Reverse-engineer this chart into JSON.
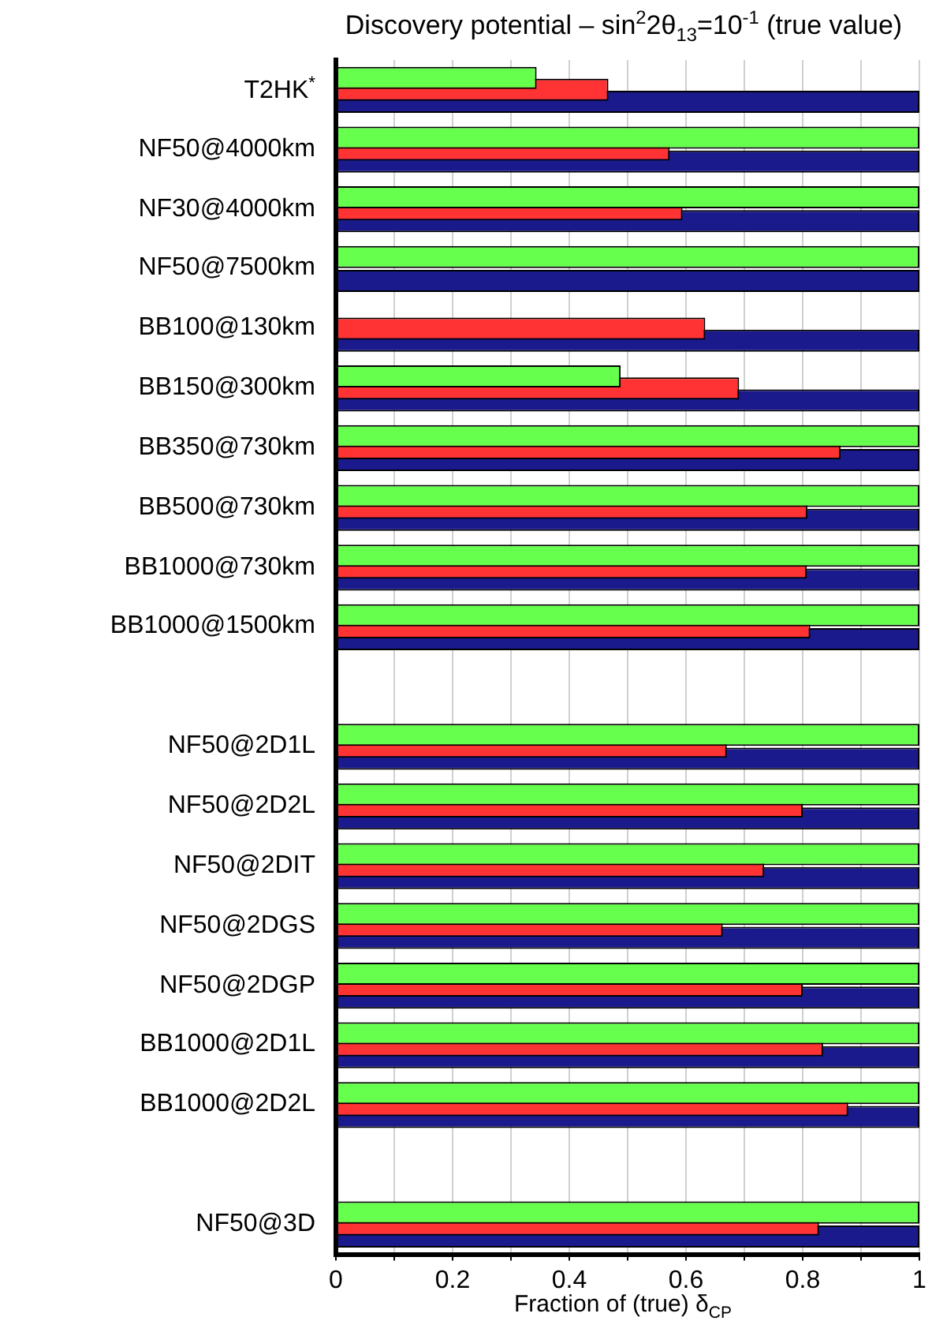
{
  "chart_data": {
    "type": "bar",
    "orientation": "horizontal",
    "title": "Discovery potential – sin$^{2}$2θ$_{13}$=10$^{-1}$ (true value)",
    "xlabel": "Fraction of (true) δ$_{CP}$",
    "categories": [
      "T2HK$^{*}$",
      "NF50@4000km",
      "NF30@4000km",
      "NF50@7500km",
      "BB100@130km",
      "BB150@300km",
      "BB350@730km",
      "BB500@730km",
      "BB1000@730km",
      "BB1000@1500km",
      null,
      "NF50@2D1L",
      "NF50@2D2L",
      "NF50@2DIT",
      "NF50@2DGS",
      "NF50@2DGP",
      "BB1000@2D1L",
      "BB1000@2D2L",
      null,
      "NF50@3D"
    ],
    "series": [
      {
        "color": "#1a1a8c",
        "values": [
          1,
          1,
          1,
          1,
          1,
          1,
          1,
          1,
          1,
          1,
          null,
          1,
          1,
          1,
          1,
          1,
          1,
          1,
          null,
          1
        ]
      },
      {
        "color": "#ff3333",
        "values": [
          0.467,
          0.572,
          0.594,
          null,
          0.633,
          0.691,
          0.865,
          0.808,
          0.807,
          0.813,
          null,
          0.67,
          0.8,
          0.734,
          0.663,
          0.8,
          0.835,
          0.878,
          null,
          0.828
        ]
      },
      {
        "color": "#66ff4d",
        "values": [
          0.344,
          1,
          1,
          1,
          null,
          0.488,
          1,
          1,
          1,
          1,
          null,
          1,
          1,
          1,
          1,
          1,
          1,
          1,
          null,
          1
        ]
      }
    ],
    "xlim": [
      0,
      1
    ],
    "xticks": [
      0,
      {
        "value": 0.1,
        "label": null
      },
      0.2,
      {
        "value": 0.3,
        "label": null
      },
      0.4,
      {
        "value": 0.5,
        "label": null
      },
      0.6,
      {
        "value": 0.7,
        "label": null
      },
      0.8,
      {
        "value": 0.9,
        "label": null
      },
      1
    ],
    "grid": "x"
  }
}
